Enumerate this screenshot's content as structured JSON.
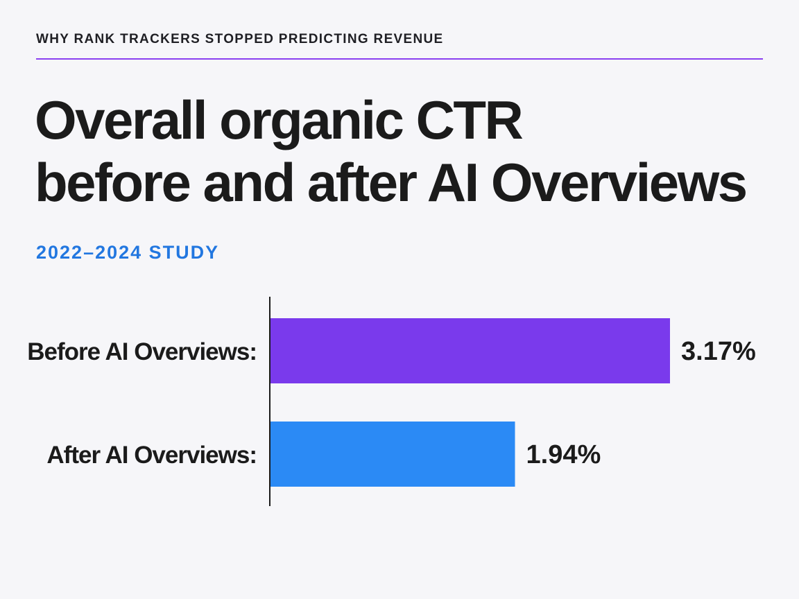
{
  "kicker": "WHY RANK TRACKERS STOPPED PREDICTING REVENUE",
  "title_lines": [
    "Overall organic CTR",
    "before and after AI Overviews"
  ],
  "subtitle": "2022–2024 STUDY",
  "colors": {
    "accent_rule": "#8a3ff0",
    "subtitle": "#2277e0",
    "background": "#f6f6f9"
  },
  "chart_data": {
    "type": "bar",
    "orientation": "horizontal",
    "categories": [
      "Before AI Overviews:",
      "After AI Overviews:"
    ],
    "values": [
      3.17,
      1.94
    ],
    "value_labels": [
      "3.17%",
      "1.94%"
    ],
    "colors": [
      "#7a3aec",
      "#2b8af5"
    ],
    "unit": "%",
    "xlim": [
      0,
      3.3
    ],
    "grid": false,
    "legend": "none"
  }
}
